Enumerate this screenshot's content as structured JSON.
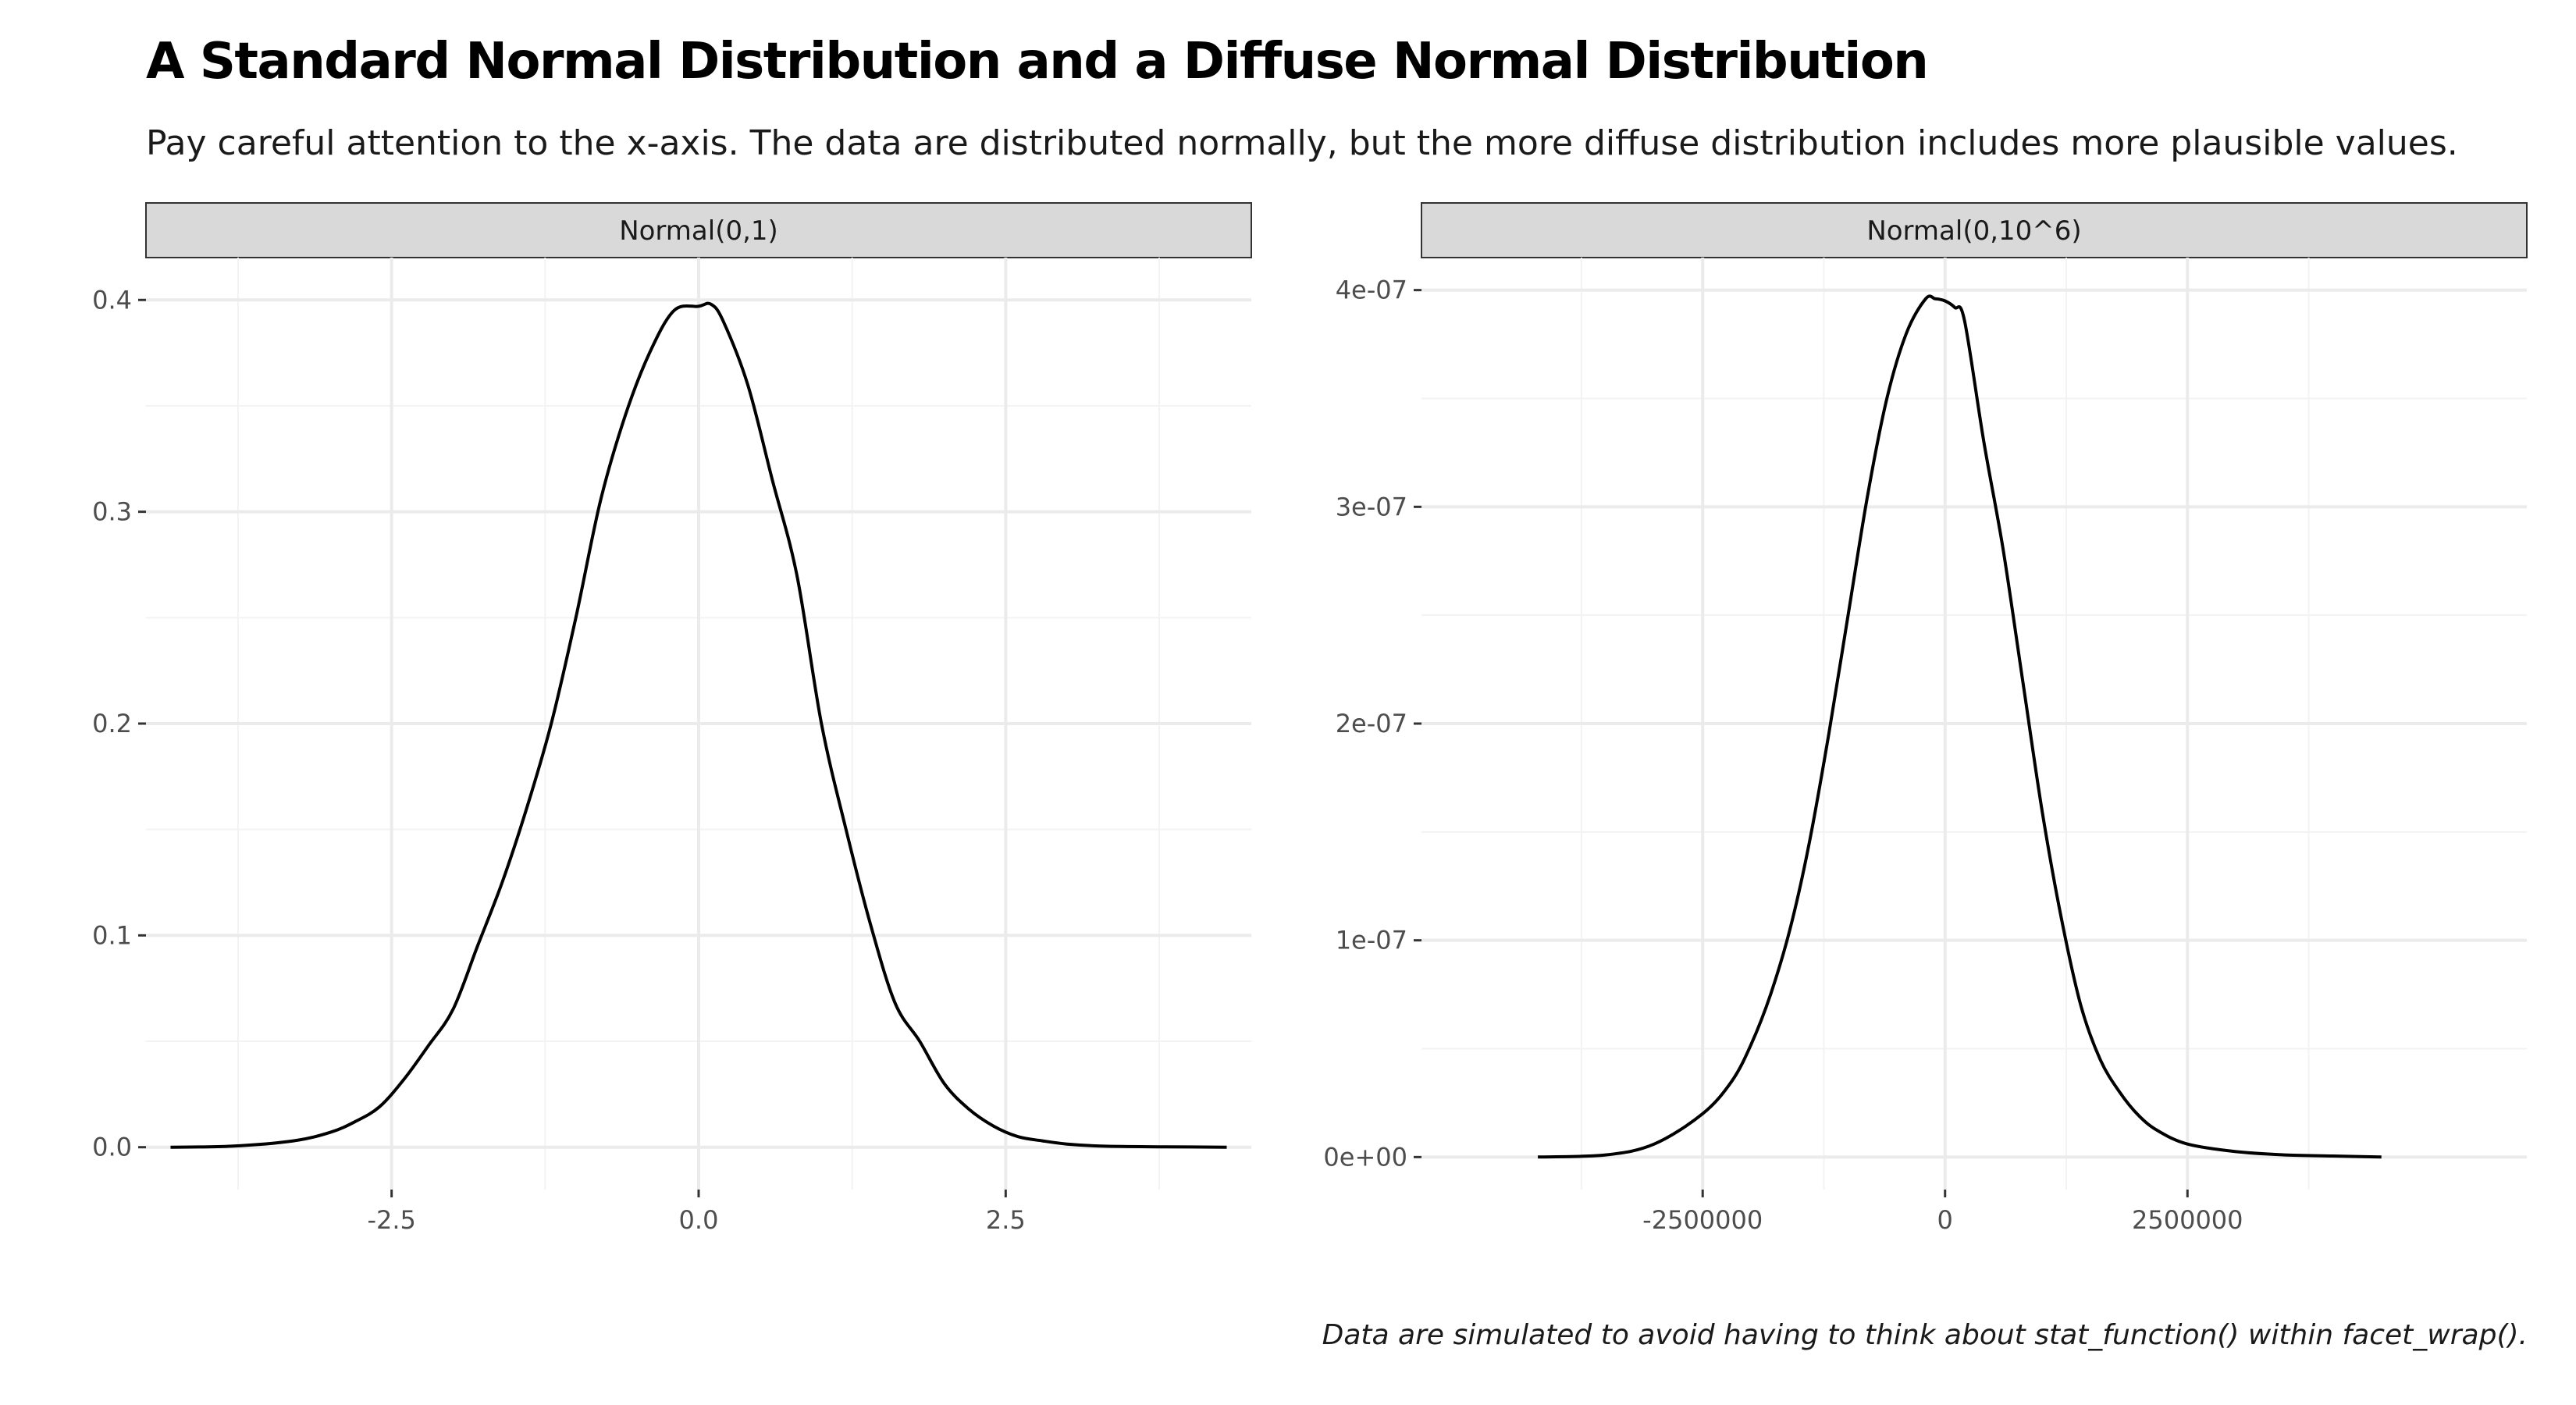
{
  "title": "A Standard Normal Distribution and a Diffuse Normal Distribution",
  "subtitle": "Pay careful attention to the x-axis. The data are distributed normally, but the more diffuse distribution includes more plausible values.",
  "caption": "Data are simulated to avoid having to think about stat_function() within facet_wrap().",
  "colors": {
    "line": "#000000",
    "strip_fill": "#d9d9d9",
    "grid_major": "#ebebeb",
    "grid_minor": "#f3f3f3",
    "tick_text": "#4d4d4d"
  },
  "chart_data": [
    {
      "type": "line",
      "panel": "Normal(0,1)",
      "xlim": [
        -4.5,
        4.5
      ],
      "ylim": [
        -0.02,
        0.42
      ],
      "xticks": [
        -2.5,
        0.0,
        2.5
      ],
      "xtick_labels": [
        "-2.5",
        "0.0",
        "2.5"
      ],
      "xminor": [
        -3.75,
        -1.25,
        1.25,
        3.75
      ],
      "yticks": [
        0.0,
        0.1,
        0.2,
        0.3,
        0.4
      ],
      "ytick_labels": [
        "0.0",
        "0.1",
        "0.2",
        "0.3",
        "0.4"
      ],
      "yminor": [
        0.05,
        0.15,
        0.25,
        0.35
      ],
      "grid": true,
      "x": [
        -4.3,
        -3.8,
        -3.3,
        -3.0,
        -2.8,
        -2.6,
        -2.4,
        -2.2,
        -2.0,
        -1.8,
        -1.6,
        -1.4,
        -1.2,
        -1.0,
        -0.8,
        -0.6,
        -0.4,
        -0.2,
        0.0,
        0.1,
        0.2,
        0.4,
        0.6,
        0.8,
        1.0,
        1.2,
        1.4,
        1.6,
        1.8,
        2.0,
        2.2,
        2.4,
        2.6,
        2.8,
        3.0,
        3.3,
        3.8,
        4.3
      ],
      "y": [
        0.0,
        0.0005,
        0.003,
        0.007,
        0.012,
        0.019,
        0.032,
        0.048,
        0.065,
        0.095,
        0.125,
        0.16,
        0.2,
        0.25,
        0.305,
        0.345,
        0.375,
        0.395,
        0.397,
        0.398,
        0.39,
        0.36,
        0.315,
        0.27,
        0.2,
        0.15,
        0.105,
        0.068,
        0.05,
        0.03,
        0.018,
        0.01,
        0.005,
        0.003,
        0.0015,
        0.0005,
        0.0002,
        0.0
      ]
    },
    {
      "type": "line",
      "panel": "Normal(0,10^6)",
      "xlim": [
        -5400000,
        6000000
      ],
      "ylim": [
        -1.5e-08,
        4.15e-07
      ],
      "xticks": [
        -2500000,
        0,
        2500000
      ],
      "xtick_labels": [
        "-2500000",
        "0",
        "2500000"
      ],
      "xminor": [
        -3750000,
        -1250000,
        1250000,
        3750000
      ],
      "yticks": [
        0,
        1e-07,
        2e-07,
        3e-07,
        4e-07
      ],
      "ytick_labels": [
        "0e+00",
        "1e-07",
        "2e-07",
        "3e-07",
        "4e-07"
      ],
      "yminor": [
        5e-08,
        1.5e-07,
        2.5e-07,
        3.5e-07
      ],
      "grid": true,
      "x": [
        -4200000,
        -3500000,
        -3000000,
        -2500000,
        -2200000,
        -2000000,
        -1800000,
        -1600000,
        -1400000,
        -1200000,
        -1000000,
        -800000,
        -600000,
        -400000,
        -200000,
        -100000,
        0,
        100000,
        200000,
        400000,
        600000,
        800000,
        1000000,
        1200000,
        1400000,
        1600000,
        1800000,
        2000000,
        2200000,
        2500000,
        3000000,
        3500000,
        4000000,
        4500000
      ],
      "y": [
        0.0,
        1e-09,
        6e-09,
        2e-08,
        3.5e-08,
        5.2e-08,
        7.5e-08,
        1.05e-07,
        1.45e-07,
        1.95e-07,
        2.5e-07,
        3.05e-07,
        3.5e-07,
        3.8e-07,
        3.96e-07,
        3.96e-07,
        3.95e-07,
        3.92e-07,
        3.86e-07,
        3.3e-07,
        2.8e-07,
        2.2e-07,
        1.6e-07,
        1.1e-07,
        7e-08,
        4.5e-08,
        3e-08,
        1.9e-08,
        1.2e-08,
        6e-09,
        2.5e-09,
        1e-09,
        5e-10,
        0.0
      ]
    }
  ]
}
